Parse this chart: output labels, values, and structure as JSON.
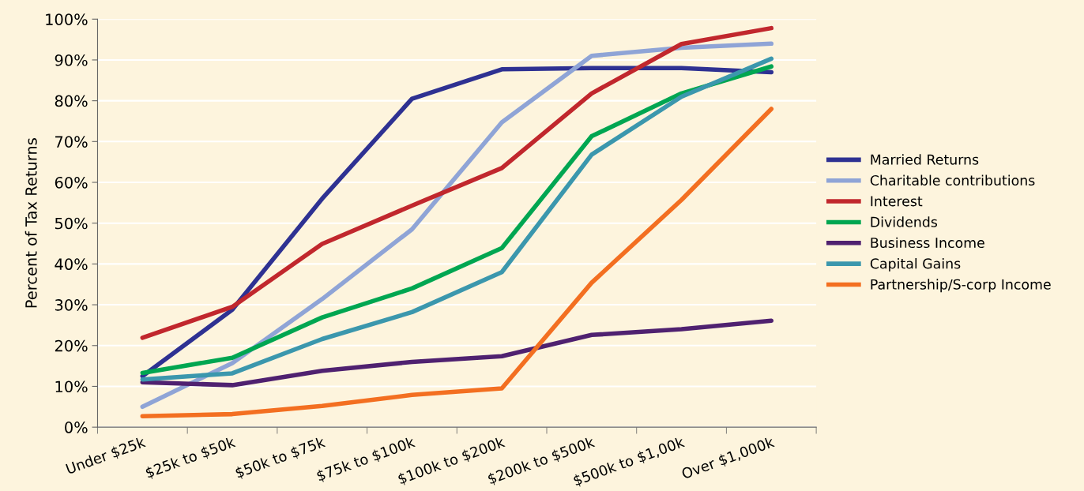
{
  "chart_data": {
    "type": "line",
    "ylabel": "Percent of Tax Returns",
    "categories": [
      "Under $25k",
      "$25k to $50k",
      "$50k to $75k",
      "$75k to $100k",
      "$100k to $200k",
      "$200k to $500k",
      "$500k to $1,00k",
      "Over $1,000k"
    ],
    "series": [
      {
        "name": "Married Returns",
        "color": "#2e3192",
        "values": [
          12.5,
          28.8,
          56,
          80.5,
          87.7,
          88,
          88,
          87
        ]
      },
      {
        "name": "Charitable contributions",
        "color": "#8fa4d6",
        "values": [
          5,
          15.7,
          31.4,
          48.5,
          74.7,
          91,
          93,
          94
        ]
      },
      {
        "name": "Interest",
        "color": "#c1272d",
        "values": [
          21.9,
          29.5,
          44.9,
          54.3,
          63.5,
          81.8,
          93.9,
          97.8
        ]
      },
      {
        "name": "Dividends",
        "color": "#00a651",
        "values": [
          13.3,
          17,
          26.9,
          34,
          43.9,
          71.3,
          81.8,
          88.4
        ]
      },
      {
        "name": "Business Income",
        "color": "#4f2170",
        "values": [
          11,
          10.3,
          13.8,
          16,
          17.4,
          22.6,
          24,
          26.1
        ]
      },
      {
        "name": "Capital Gains",
        "color": "#3b97ad",
        "values": [
          11.7,
          13.2,
          21.6,
          28.2,
          38,
          66.8,
          81,
          90.3
        ]
      },
      {
        "name": "Partnership/S-corp Income",
        "color": "#f36f21",
        "values": [
          2.7,
          3.2,
          5.2,
          7.9,
          9.5,
          35.4,
          55.7,
          78
        ]
      }
    ],
    "ylim": [
      0,
      100
    ],
    "yticks": [
      {
        "value": 0,
        "label": "0%"
      },
      {
        "value": 10,
        "label": "10%"
      },
      {
        "value": 20,
        "label": "20%"
      },
      {
        "value": 30,
        "label": "30%"
      },
      {
        "value": 40,
        "label": "40%"
      },
      {
        "value": 50,
        "label": "50%"
      },
      {
        "value": 60,
        "label": "60%"
      },
      {
        "value": 70,
        "label": "70%"
      },
      {
        "value": 80,
        "label": "80%"
      },
      {
        "value": 90,
        "label": "90%"
      },
      {
        "value": 100,
        "label": "100%"
      }
    ],
    "grid": "y",
    "legend": "right",
    "marker": "none",
    "line_style": "solid"
  }
}
